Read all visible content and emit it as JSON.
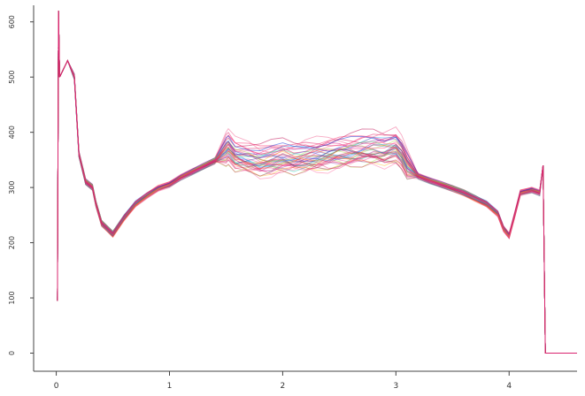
{
  "chart_data": {
    "type": "line",
    "title": "",
    "xlabel": "",
    "ylabel": "",
    "xlim": [
      -0.2,
      4.6
    ],
    "ylim": [
      -20,
      630
    ],
    "x_ticks": [
      0,
      1,
      2,
      3,
      4
    ],
    "x_tick_labels": [
      "0",
      "1",
      "2",
      "3",
      "4"
    ],
    "y_ticks": [
      0,
      100,
      200,
      300,
      400,
      500,
      600
    ],
    "y_tick_labels": [
      "0",
      "100",
      "200",
      "300",
      "400",
      "500",
      "600"
    ],
    "grid": false,
    "legend": "none",
    "series_count": 42,
    "palette": [
      "#ff2a6f",
      "#e8246a",
      "#d81b60",
      "#ff4d8d",
      "#e91e8c",
      "#c2185b",
      "#f06292",
      "#1e40d8",
      "#2f5bea",
      "#1d2f9b",
      "#00a6ff",
      "#10c9a6",
      "#2bd65b",
      "#9be12a",
      "#ffb000",
      "#ff6a00",
      "#e53935",
      "#8e24aa"
    ],
    "series": [
      {
        "x": [
          0.01,
          0.02,
          0.03,
          0.1,
          0.16,
          0.2,
          0.26,
          0.32,
          0.35,
          0.4,
          0.5,
          0.6,
          0.7,
          0.8,
          0.9,
          1.0,
          1.1,
          1.2,
          1.3,
          1.4,
          1.5,
          1.52,
          1.58,
          1.7,
          1.8,
          1.9,
          2.0,
          2.1,
          2.2,
          2.3,
          2.4,
          2.5,
          2.6,
          2.7,
          2.8,
          2.9,
          3.0,
          3.05,
          3.1,
          3.2,
          3.3,
          3.4,
          3.5,
          3.6,
          3.7,
          3.8,
          3.9,
          3.95,
          4.0,
          4.05,
          4.1,
          4.2,
          4.27,
          4.3,
          4.32,
          4.36,
          4.6
        ],
        "y": [
          95,
          620,
          500,
          530,
          500,
          360,
          310,
          300,
          270,
          235,
          215,
          245,
          270,
          285,
          298,
          305,
          318,
          328,
          338,
          348,
          356,
          360,
          345,
          340,
          335,
          338,
          342,
          340,
          343,
          345,
          347,
          350,
          352,
          355,
          357,
          355,
          360,
          348,
          328,
          320,
          312,
          305,
          298,
          290,
          280,
          270,
          252,
          225,
          212,
          250,
          290,
          295,
          290,
          340,
          0,
          0,
          0
        ]
      }
    ]
  }
}
